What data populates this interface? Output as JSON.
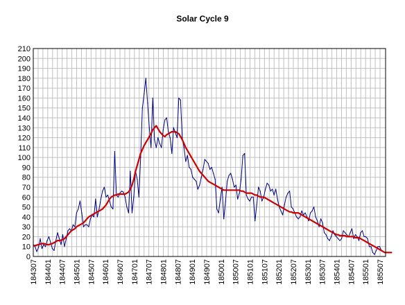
{
  "chart_data": {
    "type": "line",
    "title": "Solar Cycle 9",
    "xlabel": "",
    "ylabel": "",
    "ylim": [
      0,
      210
    ],
    "y_ticks": [
      0,
      10,
      20,
      30,
      40,
      50,
      60,
      70,
      80,
      90,
      100,
      110,
      120,
      130,
      140,
      150,
      160,
      170,
      180,
      190,
      200,
      210
    ],
    "x_tick_labels": [
      "184307",
      "184401",
      "184407",
      "184501",
      "184507",
      "184601",
      "184607",
      "184701",
      "184707",
      "184801",
      "184807",
      "184901",
      "184907",
      "185001",
      "185007",
      "185101",
      "185107",
      "185201",
      "185207",
      "185301",
      "185307",
      "185401",
      "185407",
      "185501",
      "185507"
    ],
    "grid": true,
    "legend": "none",
    "series": [
      {
        "color": "#000080",
        "values": [
          12,
          10,
          5,
          9,
          18,
          8,
          12,
          10,
          16,
          20,
          14,
          8,
          6,
          16,
          24,
          18,
          12,
          22,
          10,
          18,
          26,
          28,
          26,
          32,
          30,
          44,
          48,
          56,
          44,
          30,
          32,
          32,
          30,
          38,
          42,
          40,
          58,
          40,
          48,
          58,
          66,
          70,
          60,
          62,
          56,
          50,
          48,
          106,
          62,
          60,
          64,
          66,
          65,
          60,
          50,
          44,
          86,
          44,
          60,
          86,
          78,
          60,
          100,
          150,
          164,
          180,
          155,
          130,
          110,
          160,
          118,
          110,
          120,
          114,
          110,
          128,
          138,
          140,
          126,
          120,
          104,
          130,
          125,
          120,
          160,
          158,
          120,
          110,
          96,
          102,
          90,
          88,
          80,
          78,
          76,
          68,
          72,
          80,
          88,
          98,
          96,
          94,
          88,
          90,
          84,
          78,
          48,
          44,
          58,
          70,
          38,
          56,
          76,
          82,
          84,
          78,
          70,
          72,
          58,
          64,
          78,
          102,
          104,
          62,
          58,
          56,
          60,
          60,
          36,
          52,
          70,
          66,
          56,
          60,
          68,
          74,
          72,
          66,
          68,
          62,
          68,
          58,
          50,
          46,
          42,
          52,
          60,
          64,
          66,
          50,
          48,
          44,
          40,
          38,
          40,
          46,
          42,
          44,
          40,
          36,
          44,
          46,
          50,
          40,
          36,
          30,
          38,
          34,
          24,
          22,
          18,
          16,
          20,
          26,
          22,
          20,
          18,
          16,
          18,
          26,
          24,
          22,
          20,
          24,
          28,
          18,
          22,
          20,
          16,
          24,
          26,
          20,
          20,
          18,
          10,
          10,
          4,
          2,
          6,
          10,
          10,
          6
        ]
      },
      {
        "color": "#cc0000",
        "values": [
          11,
          11,
          11.5,
          12,
          12.5,
          13,
          13,
          12.5,
          12,
          12,
          12.5,
          13,
          14,
          15,
          16,
          16,
          16.5,
          17,
          18,
          20,
          22,
          24,
          26,
          27,
          28,
          30,
          31,
          32,
          33,
          34,
          36,
          38,
          40,
          41,
          42,
          43,
          44,
          45,
          46,
          47,
          48,
          50,
          52,
          55,
          58,
          60,
          61,
          62,
          62,
          63,
          63,
          63,
          63,
          63,
          64,
          65,
          68,
          72,
          78,
          86,
          92,
          98,
          104,
          108,
          112,
          115,
          118,
          121,
          124,
          128,
          130,
          132,
          129,
          126,
          124,
          122,
          121,
          123,
          124,
          125,
          126,
          126,
          126,
          125,
          124,
          121,
          118,
          114,
          110,
          107,
          104,
          101,
          98,
          95,
          92,
          89,
          86,
          84,
          82,
          80,
          78,
          76,
          75,
          74,
          73,
          72,
          71,
          70,
          69,
          68,
          67,
          67,
          67,
          67,
          67,
          67,
          67,
          67,
          67,
          67,
          66,
          66,
          65,
          64,
          64,
          64,
          64,
          63,
          62,
          62,
          61,
          60,
          60,
          60,
          59,
          58,
          57,
          56,
          55,
          54,
          53,
          52,
          51,
          50,
          49,
          48,
          47,
          46,
          45,
          45,
          44,
          44,
          44,
          44,
          43,
          42,
          41,
          40,
          39,
          38,
          37,
          36,
          35,
          34,
          33,
          32,
          31,
          30,
          29,
          28,
          27,
          26,
          25,
          24,
          23,
          22,
          22,
          21,
          21,
          21,
          21,
          20,
          20,
          20,
          20,
          20,
          19,
          19,
          19,
          18,
          17,
          16,
          15,
          14,
          13,
          12,
          11,
          10,
          9,
          8,
          7,
          6,
          5,
          4,
          4,
          4,
          4,
          4
        ]
      }
    ]
  }
}
